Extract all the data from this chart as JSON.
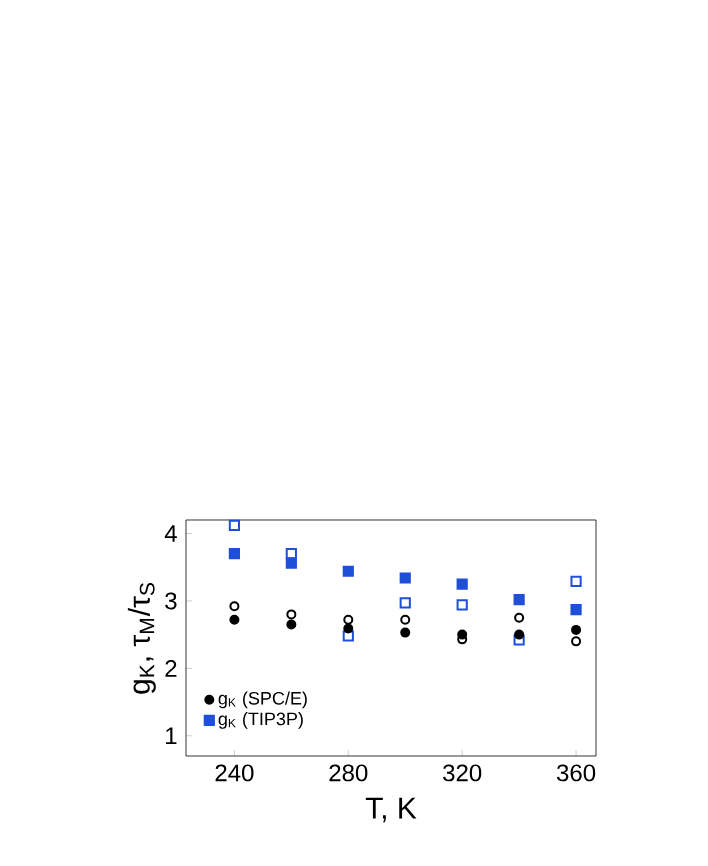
{
  "chart_data": {
    "type": "scatter",
    "xlabel": "T, K",
    "ylabel": "g$_{K}$, τ$_{M}$/τ$_{S}$",
    "x": [
      240,
      260,
      280,
      300,
      320,
      340,
      360
    ],
    "xlim": [
      223,
      367
    ],
    "ylim": [
      0.7,
      4.2
    ],
    "xticks": [
      240,
      280,
      320,
      360
    ],
    "yticks": [
      1,
      2,
      3,
      4
    ],
    "legend": "bottom left",
    "grid": false,
    "series": [
      {
        "color": "#000000",
        "marker": "circle",
        "values": [
          2.92,
          2.8,
          2.72,
          2.72,
          2.43,
          2.75,
          2.4
        ]
      },
      {
        "color": "#1f4fd8",
        "marker": "square",
        "values": [
          4.12,
          3.7,
          2.48,
          2.97,
          2.94,
          2.42,
          3.29
        ]
      },
      {
        "name": "g$_{K}$ (SPC/E)",
        "color": "#000000",
        "marker": "circle",
        "values": [
          2.72,
          2.65,
          2.59,
          2.53,
          2.5,
          2.5,
          2.57
        ]
      },
      {
        "name": "g$_{K}$ (TIP3P)",
        "color": "#1f4fd8",
        "marker": "square",
        "values": [
          3.7,
          3.56,
          3.44,
          3.34,
          3.25,
          3.02,
          2.87
        ]
      }
    ]
  }
}
